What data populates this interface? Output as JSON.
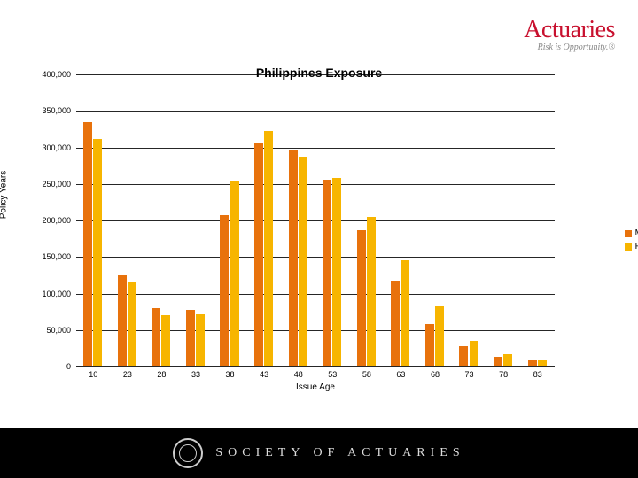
{
  "brand": {
    "name": "Actuaries",
    "tagline": "Risk is Opportunity.®"
  },
  "footer": {
    "org": "SOCIETY OF ACTUARIES"
  },
  "chart": {
    "type": "bar",
    "title": "Philippines Exposure",
    "xlabel": "Issue Age",
    "ylabel": "Policy Years",
    "ylim": [
      0,
      400000
    ],
    "ytick_step": 50000,
    "yticks": [
      "0",
      "50,000",
      "100,000",
      "150,000",
      "200,000",
      "250,000",
      "300,000",
      "350,000",
      "400,000"
    ],
    "categories": [
      "10",
      "23",
      "28",
      "33",
      "38",
      "43",
      "48",
      "53",
      "58",
      "63",
      "68",
      "73",
      "78",
      "83"
    ],
    "series": [
      {
        "name": "Male",
        "color": "#e8720c",
        "values": [
          335000,
          125000,
          80000,
          78000,
          207000,
          305000,
          296000,
          256000,
          187000,
          118000,
          58000,
          28000,
          13000,
          8000
        ]
      },
      {
        "name": "Female",
        "color": "#f7b500",
        "values": [
          312000,
          115000,
          70000,
          72000,
          253000,
          323000,
          287000,
          258000,
          205000,
          145000,
          83000,
          35000,
          17000,
          9000
        ]
      }
    ],
    "grid_color": "#000000",
    "background_color": "#ffffff",
    "bar_group_width": 0.58,
    "title_fontsize": 14,
    "label_fontsize": 10,
    "tick_fontsize": 9
  }
}
